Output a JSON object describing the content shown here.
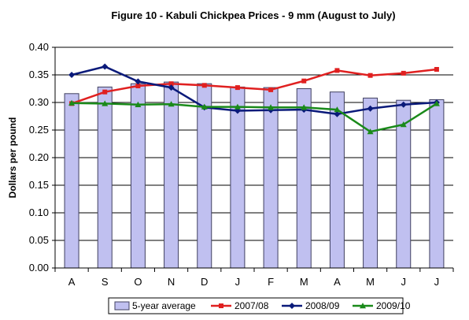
{
  "chart_data": {
    "type": "bar",
    "title": "Figure 10 - Kabuli Chickpea Prices - 9 mm  (August to July)",
    "ylabel": "Dollars per pound",
    "xlabel": "",
    "ylim": [
      0,
      0.4
    ],
    "yticks": [
      "0.00",
      "0.05",
      "0.10",
      "0.15",
      "0.20",
      "0.25",
      "0.30",
      "0.35",
      "0.40"
    ],
    "categories": [
      "A",
      "S",
      "O",
      "N",
      "D",
      "J",
      "F",
      "M",
      "A",
      "M",
      "J",
      "J"
    ],
    "grid": "horizontal",
    "legend_position": "bottom",
    "series": [
      {
        "name": "5-year average",
        "type": "bar",
        "color": "#c0c0f0",
        "values": [
          0.316,
          0.328,
          0.334,
          0.337,
          0.334,
          0.328,
          0.327,
          0.325,
          0.319,
          0.308,
          0.304,
          0.305
        ]
      },
      {
        "name": "2007/08",
        "type": "line",
        "marker": "square",
        "color": "#e02020",
        "values": [
          0.298,
          0.319,
          0.33,
          0.334,
          0.331,
          0.327,
          0.323,
          0.339,
          0.358,
          0.349,
          0.353,
          0.36
        ]
      },
      {
        "name": "2008/09",
        "type": "line",
        "marker": "diamond",
        "color": "#0a1a7a",
        "values": [
          0.35,
          0.365,
          0.338,
          0.327,
          0.291,
          0.285,
          0.286,
          0.287,
          0.279,
          0.289,
          0.296,
          0.3
        ]
      },
      {
        "name": "2009/10",
        "type": "line",
        "marker": "triangle",
        "color": "#1a8a1a",
        "values": [
          0.299,
          0.298,
          0.296,
          0.297,
          0.292,
          0.292,
          0.291,
          0.291,
          0.287,
          0.247,
          0.26,
          0.298
        ]
      }
    ]
  }
}
